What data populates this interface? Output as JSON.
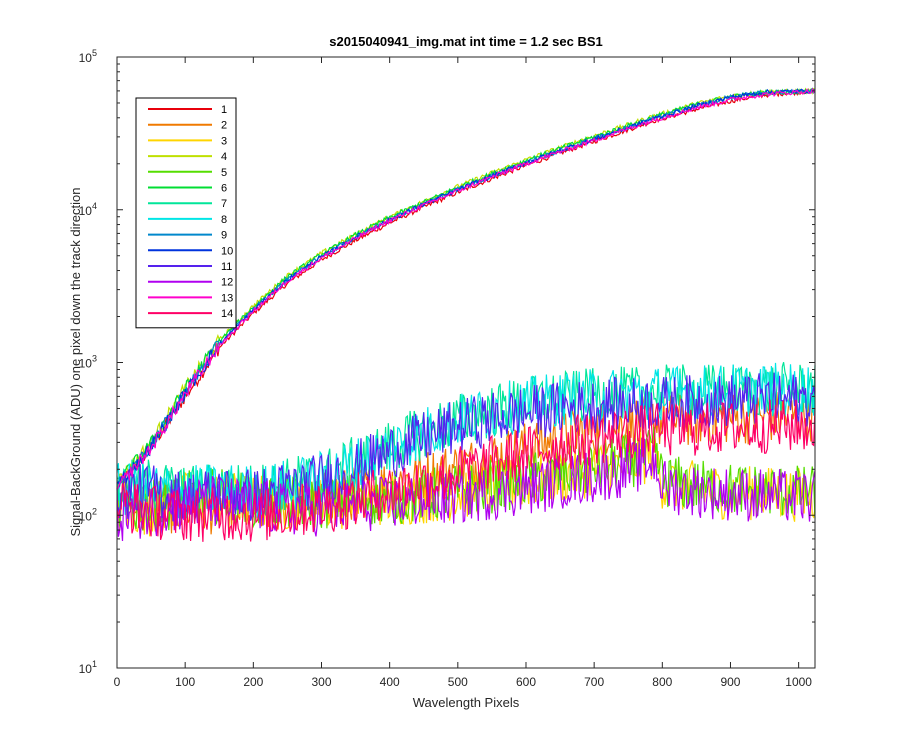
{
  "chart_data": {
    "type": "line",
    "title": "s2015040941_img.mat int time = 1.2 sec   BS1",
    "xlabel": "Wavelength Pixels",
    "ylabel": "Signal-BackGround (ADU) one pixel down the track direction",
    "xlim": [
      0,
      1024
    ],
    "ylim": [
      10,
      100000
    ],
    "yscale": "log",
    "x_ticks": [
      "0",
      "100",
      "200",
      "300",
      "400",
      "500",
      "600",
      "700",
      "800",
      "900",
      "1000"
    ],
    "y_ticks": [
      {
        "base": "10",
        "exp": "1"
      },
      {
        "base": "10",
        "exp": "2"
      },
      {
        "base": "10",
        "exp": "3"
      },
      {
        "base": "10",
        "exp": "4"
      },
      {
        "base": "10",
        "exp": "5"
      }
    ],
    "grid": false,
    "legend_position": "top-left",
    "x": [
      0,
      50,
      100,
      150,
      200,
      250,
      300,
      350,
      400,
      450,
      500,
      550,
      600,
      650,
      700,
      750,
      790,
      800,
      850,
      900,
      950,
      1024
    ],
    "series": [
      {
        "name": "1",
        "color": "#e8000b",
        "values": [
          150,
          280,
          600,
          1250,
          2100,
          3300,
          4700,
          6300,
          8200,
          10400,
          13000,
          16000,
          19500,
          23500,
          28000,
          33500,
          38500,
          39500,
          45500,
          51500,
          56500,
          60000
        ]
      },
      {
        "name": "2",
        "color": "#f07a00",
        "values": [
          130,
          115,
          112,
          113,
          110,
          118,
          128,
          140,
          160,
          180,
          205,
          235,
          275,
          320,
          365,
          400,
          420,
          410,
          425,
          435,
          440,
          450
        ]
      },
      {
        "name": "3",
        "color": "#ffd500",
        "values": [
          110,
          110,
          128,
          132,
          125,
          118,
          120,
          125,
          128,
          132,
          140,
          150,
          165,
          180,
          200,
          220,
          250,
          165,
          150,
          140,
          140,
          135
        ]
      },
      {
        "name": "4",
        "color": "#bfe000",
        "values": [
          165,
          300,
          680,
          1400,
          2350,
          3700,
          5200,
          6900,
          9000,
          11300,
          14200,
          17400,
          21200,
          25500,
          30500,
          36000,
          41500,
          42500,
          49500,
          55500,
          59000,
          60000
        ]
      },
      {
        "name": "5",
        "color": "#55dd00",
        "values": [
          112,
          112,
          130,
          135,
          128,
          120,
          122,
          128,
          130,
          135,
          145,
          155,
          170,
          185,
          205,
          225,
          255,
          170,
          155,
          148,
          145,
          140
        ]
      },
      {
        "name": "6",
        "color": "#00dd33",
        "values": [
          160,
          295,
          670,
          1380,
          2300,
          3650,
          5100,
          6850,
          8900,
          11200,
          14000,
          17200,
          21000,
          25200,
          30000,
          35500,
          41000,
          42000,
          49000,
          55000,
          58500,
          60000
        ]
      },
      {
        "name": "7",
        "color": "#00e699",
        "values": [
          150,
          160,
          140,
          150,
          145,
          160,
          180,
          220,
          280,
          350,
          420,
          480,
          540,
          580,
          610,
          625,
          640,
          640,
          650,
          660,
          665,
          670
        ]
      },
      {
        "name": "8",
        "color": "#00e6e6",
        "values": [
          145,
          150,
          140,
          148,
          142,
          155,
          175,
          215,
          275,
          345,
          415,
          475,
          535,
          575,
          605,
          620,
          635,
          635,
          645,
          655,
          660,
          665
        ]
      },
      {
        "name": "9",
        "color": "#0088cc",
        "values": [
          155,
          285,
          640,
          1330,
          2230,
          3520,
          4950,
          6650,
          8650,
          10900,
          13600,
          16700,
          20400,
          24500,
          29200,
          34700,
          40000,
          41000,
          48000,
          54500,
          58500,
          60000
        ]
      },
      {
        "name": "10",
        "color": "#0033dd",
        "values": [
          155,
          280,
          630,
          1310,
          2200,
          3480,
          4900,
          6600,
          8600,
          10850,
          13500,
          16600,
          20300,
          24400,
          29000,
          34500,
          39800,
          40800,
          47800,
          54500,
          58800,
          60000
        ]
      },
      {
        "name": "11",
        "color": "#5522ee",
        "values": [
          140,
          145,
          130,
          140,
          135,
          150,
          170,
          205,
          260,
          320,
          380,
          430,
          470,
          500,
          520,
          535,
          545,
          545,
          555,
          565,
          570,
          575
        ]
      },
      {
        "name": "12",
        "color": "#b000f0",
        "values": [
          100,
          108,
          118,
          122,
          115,
          108,
          110,
          115,
          120,
          125,
          130,
          140,
          150,
          165,
          180,
          200,
          230,
          155,
          145,
          138,
          135,
          130
        ]
      },
      {
        "name": "13",
        "color": "#ff00cc",
        "values": [
          150,
          275,
          620,
          1290,
          2170,
          3430,
          4830,
          6500,
          8500,
          10700,
          13300,
          16400,
          20000,
          24000,
          28500,
          34000,
          39000,
          40000,
          46500,
          52500,
          57000,
          60000
        ]
      },
      {
        "name": "14",
        "color": "#ff0066",
        "values": [
          120,
          105,
          100,
          102,
          98,
          105,
          112,
          125,
          145,
          165,
          190,
          220,
          255,
          290,
          320,
          345,
          360,
          355,
          365,
          375,
          380,
          385
        ]
      }
    ]
  }
}
